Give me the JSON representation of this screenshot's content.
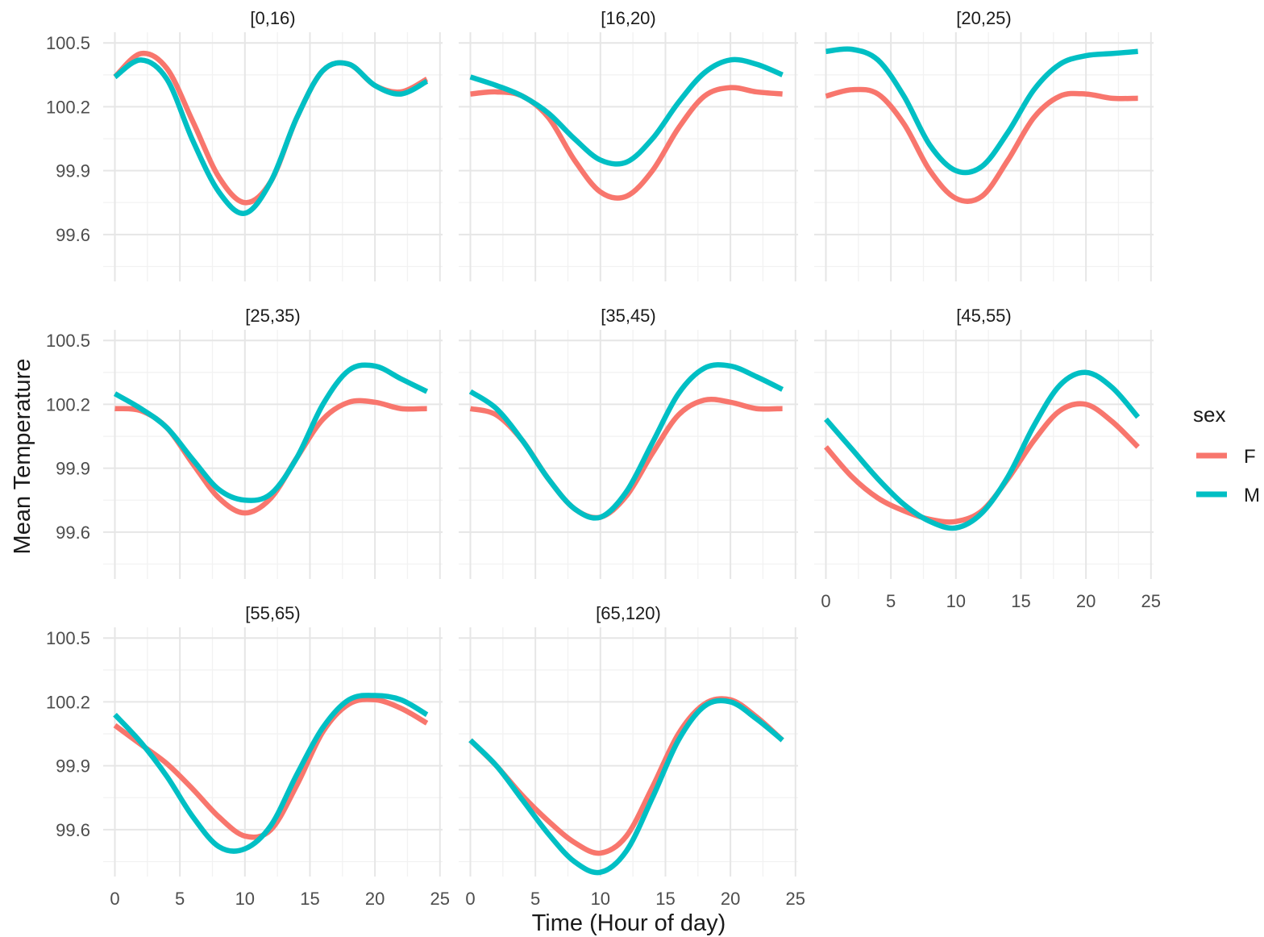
{
  "chart_data": {
    "type": "line",
    "facet_variable": "age group",
    "xlabel": "Time (Hour of day)",
    "ylabel": "Mean Temperature",
    "xlim": [
      -0.9,
      25.2
    ],
    "ylim": [
      99.38,
      100.55
    ],
    "x_ticks": [
      0,
      5,
      10,
      15,
      20,
      25
    ],
    "y_ticks": [
      99.6,
      99.9,
      100.2,
      100.5
    ],
    "y_tick_labels": [
      "99.6",
      "99.9",
      "100.2",
      "100.5"
    ],
    "grid": true,
    "legend": {
      "title": "sex",
      "position": "right",
      "entries": [
        {
          "label": "F",
          "color": "#F8766D"
        },
        {
          "label": "M",
          "color": "#00BFC4"
        }
      ]
    },
    "series_colors": {
      "F": "#F8766D",
      "M": "#00BFC4"
    },
    "panels": [
      {
        "label": "[0,16)",
        "x": [
          0,
          2,
          4,
          6,
          8,
          10,
          12,
          14,
          16,
          18,
          20,
          22,
          24
        ],
        "F": [
          100.34,
          100.45,
          100.38,
          100.13,
          99.87,
          99.75,
          99.85,
          100.15,
          100.37,
          100.4,
          100.3,
          100.27,
          100.33
        ],
        "M": [
          100.34,
          100.42,
          100.33,
          100.04,
          99.8,
          99.7,
          99.85,
          100.15,
          100.37,
          100.4,
          100.3,
          100.26,
          100.32
        ]
      },
      {
        "label": "[16,20)",
        "x": [
          0,
          2,
          4,
          6,
          8,
          10,
          12,
          14,
          16,
          18,
          20,
          22,
          24
        ],
        "F": [
          100.26,
          100.27,
          100.25,
          100.15,
          99.95,
          99.8,
          99.78,
          99.9,
          100.1,
          100.25,
          100.29,
          100.27,
          100.26
        ],
        "M": [
          100.34,
          100.3,
          100.25,
          100.17,
          100.05,
          99.95,
          99.94,
          100.05,
          100.22,
          100.36,
          100.42,
          100.4,
          100.35
        ]
      },
      {
        "label": "[20,25)",
        "x": [
          0,
          2,
          4,
          6,
          8,
          10,
          12,
          14,
          16,
          18,
          20,
          22,
          24
        ],
        "F": [
          100.25,
          100.28,
          100.26,
          100.12,
          99.9,
          99.77,
          99.78,
          99.95,
          100.15,
          100.25,
          100.26,
          100.24,
          100.24
        ],
        "M": [
          100.46,
          100.47,
          100.42,
          100.25,
          100.02,
          99.9,
          99.92,
          100.08,
          100.28,
          100.4,
          100.44,
          100.45,
          100.46
        ]
      },
      {
        "label": "[25,35)",
        "x": [
          0,
          2,
          4,
          6,
          8,
          10,
          12,
          14,
          16,
          18,
          20,
          22,
          24
        ],
        "F": [
          100.18,
          100.17,
          100.09,
          99.92,
          99.76,
          99.69,
          99.76,
          99.95,
          100.13,
          100.21,
          100.21,
          100.18,
          100.18
        ],
        "M": [
          100.25,
          100.18,
          100.09,
          99.94,
          99.8,
          99.75,
          99.78,
          99.95,
          100.2,
          100.36,
          100.38,
          100.32,
          100.26
        ]
      },
      {
        "label": "[35,45)",
        "x": [
          0,
          2,
          4,
          6,
          8,
          10,
          12,
          14,
          16,
          18,
          20,
          22,
          24
        ],
        "F": [
          100.18,
          100.15,
          100.03,
          99.85,
          99.71,
          99.67,
          99.77,
          99.97,
          100.15,
          100.22,
          100.21,
          100.18,
          100.18
        ],
        "M": [
          100.26,
          100.18,
          100.03,
          99.85,
          99.71,
          99.67,
          99.79,
          100.02,
          100.25,
          100.37,
          100.38,
          100.33,
          100.27
        ]
      },
      {
        "label": "[45,55)",
        "x": [
          0,
          2,
          4,
          6,
          8,
          10,
          12,
          14,
          16,
          18,
          20,
          22,
          24
        ],
        "F": [
          100.0,
          99.86,
          99.76,
          99.7,
          99.66,
          99.65,
          99.7,
          99.85,
          100.03,
          100.17,
          100.2,
          100.12,
          100.0
        ],
        "M": [
          100.13,
          99.99,
          99.85,
          99.73,
          99.65,
          99.62,
          99.69,
          99.86,
          100.1,
          100.29,
          100.35,
          100.28,
          100.14
        ]
      },
      {
        "label": "[55,65)",
        "x": [
          0,
          2,
          4,
          6,
          8,
          10,
          12,
          14,
          16,
          18,
          20,
          22,
          24
        ],
        "F": [
          100.09,
          100.0,
          99.91,
          99.79,
          99.66,
          99.57,
          99.6,
          99.81,
          100.06,
          100.19,
          100.21,
          100.17,
          100.1
        ],
        "M": [
          100.14,
          100.01,
          99.85,
          99.66,
          99.52,
          99.51,
          99.62,
          99.86,
          100.08,
          100.21,
          100.23,
          100.21,
          100.14
        ]
      },
      {
        "label": "[65,120)",
        "x": [
          0,
          2,
          4,
          6,
          8,
          10,
          12,
          14,
          16,
          18,
          20,
          22,
          24
        ],
        "F": [
          100.02,
          99.9,
          99.76,
          99.64,
          99.54,
          99.49,
          99.57,
          99.8,
          100.05,
          100.19,
          100.21,
          100.13,
          100.02
        ],
        "M": [
          100.02,
          99.9,
          99.74,
          99.58,
          99.45,
          99.4,
          99.5,
          99.75,
          100.02,
          100.18,
          100.2,
          100.12,
          100.02
        ]
      }
    ]
  }
}
